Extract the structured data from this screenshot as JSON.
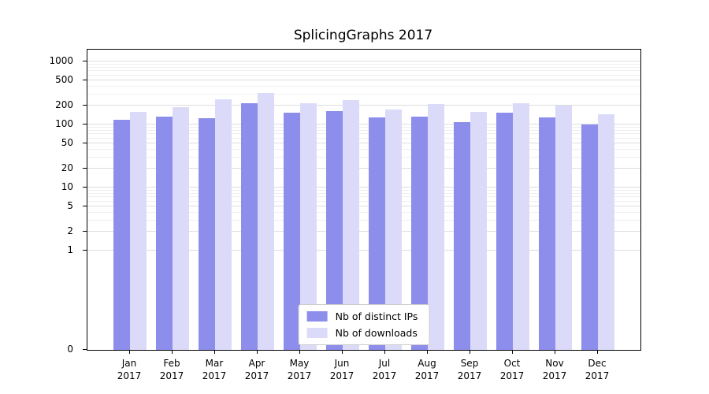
{
  "chart_data": {
    "type": "bar",
    "title": "SplicingGraphs 2017",
    "categories": [
      "Jan",
      "Feb",
      "Mar",
      "Apr",
      "May",
      "Jun",
      "Jul",
      "Aug",
      "Sep",
      "Oct",
      "Nov",
      "Dec"
    ],
    "category_year": "2017",
    "series": [
      {
        "name": "Nb of distinct IPs",
        "color": "#8d8dec",
        "values": [
          120,
          135,
          125,
          215,
          155,
          165,
          130,
          135,
          110,
          155,
          130,
          100
        ]
      },
      {
        "name": "Nb of downloads",
        "color": "#dbdbf9",
        "values": [
          160,
          190,
          250,
          320,
          215,
          245,
          175,
          210,
          160,
          220,
          200,
          145
        ]
      }
    ],
    "yscale": "symlog",
    "yticks": [
      0,
      1,
      2,
      5,
      10,
      20,
      50,
      100,
      200,
      500,
      1000
    ],
    "ylim": [
      0,
      1200
    ],
    "xlabel": "",
    "ylabel": "",
    "grid": true,
    "legend_position": "lower center",
    "colors": {
      "grid_major": "#dddddd",
      "grid_minor": "#efefef",
      "axis": "#000000",
      "background": "#ffffff"
    }
  }
}
